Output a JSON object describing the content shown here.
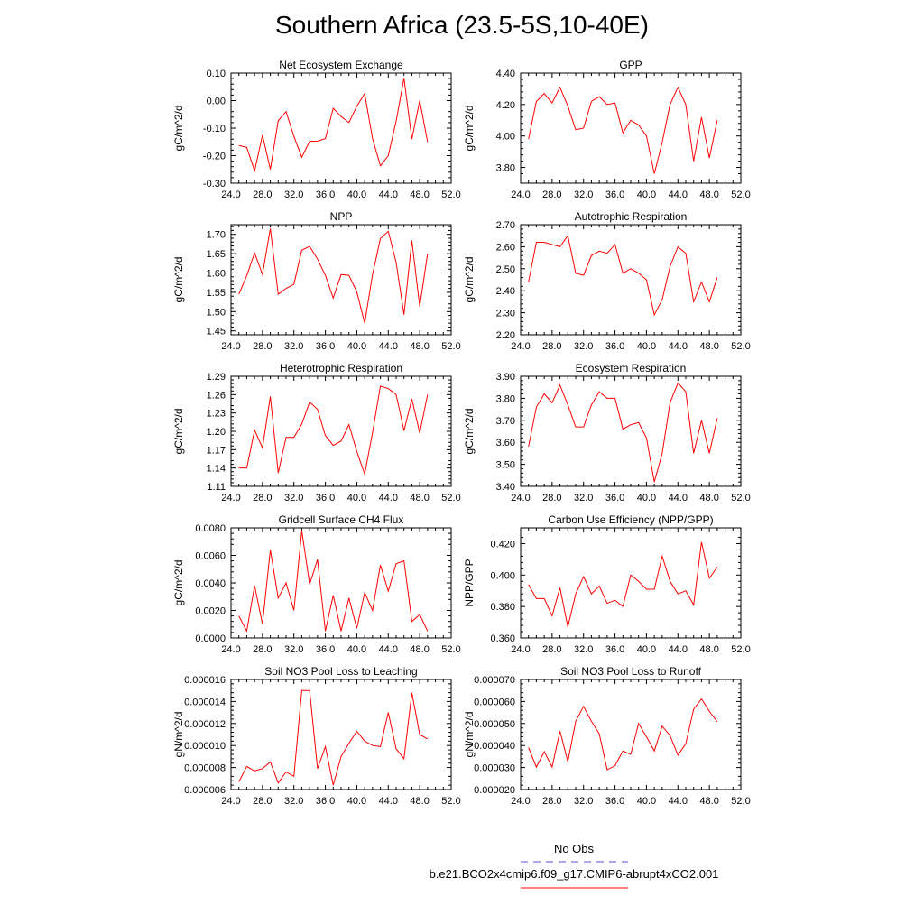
{
  "title": "Southern Africa (23.5-5S,10-40E)",
  "legend": {
    "placement": "bottom-center",
    "entries": [
      {
        "label": "No Obs",
        "color": "#5555cc",
        "style": "dashed"
      },
      {
        "label": "b.e21.BCO2x4cmip6.f09_g17.CMIP6-abrupt4xCO2.001",
        "color": "#ff0000",
        "style": "solid"
      }
    ]
  },
  "chart_data": [
    {
      "type": "line",
      "title": "Net Ecosystem Exchange",
      "ylabel": "gC/m^2/d",
      "xlim": [
        24,
        52
      ],
      "ylim": [
        -0.3,
        0.1
      ],
      "xticks": [
        "24.0",
        "28.0",
        "32.0",
        "36.0",
        "40.0",
        "44.0",
        "48.0",
        "52.0"
      ],
      "yticks": [
        "-0.30",
        "-0.20",
        "-0.10",
        "0.00",
        "0.10"
      ],
      "x": [
        25,
        26,
        27,
        28,
        29,
        30,
        31,
        32,
        33,
        34,
        35,
        36,
        37,
        38,
        39,
        40,
        41,
        42,
        43,
        44,
        45,
        46,
        47,
        48,
        49
      ],
      "series": [
        {
          "values": [
            -0.163,
            -0.17,
            -0.256,
            -0.125,
            -0.25,
            -0.073,
            -0.04,
            -0.13,
            -0.206,
            -0.148,
            -0.147,
            -0.138,
            -0.028,
            -0.058,
            -0.08,
            -0.02,
            0.025,
            -0.138,
            -0.237,
            -0.2,
            -0.075,
            0.082,
            -0.14,
            0.0,
            -0.15
          ],
          "color": "#ff0000"
        }
      ]
    },
    {
      "type": "line",
      "title": "GPP",
      "ylabel": "gC/m^2/d",
      "xlim": [
        24,
        52
      ],
      "ylim": [
        3.7,
        4.4
      ],
      "xticks": [
        "24.0",
        "28.0",
        "32.0",
        "36.0",
        "40.0",
        "44.0",
        "48.0",
        "52.0"
      ],
      "yticks": [
        "3.80",
        "4.00",
        "4.20",
        "4.40"
      ],
      "x": [
        25,
        26,
        27,
        28,
        29,
        30,
        31,
        32,
        33,
        34,
        35,
        36,
        37,
        38,
        39,
        40,
        41,
        42,
        43,
        44,
        45,
        46,
        47,
        48,
        49
      ],
      "series": [
        {
          "values": [
            3.98,
            4.22,
            4.27,
            4.21,
            4.31,
            4.19,
            4.04,
            4.05,
            4.22,
            4.25,
            4.2,
            4.21,
            4.02,
            4.1,
            4.07,
            4.0,
            3.76,
            3.96,
            4.2,
            4.31,
            4.2,
            3.84,
            4.12,
            3.86,
            4.1
          ],
          "color": "#ff0000"
        }
      ]
    },
    {
      "type": "line",
      "title": "NPP",
      "ylabel": "gC/m^2/d",
      "xlim": [
        24,
        52
      ],
      "ylim": [
        1.44,
        1.725
      ],
      "xticks": [
        "24.0",
        "28.0",
        "32.0",
        "36.0",
        "40.0",
        "44.0",
        "48.0",
        "52.0"
      ],
      "yticks": [
        "1.45",
        "1.50",
        "1.55",
        "1.60",
        "1.65",
        "1.70"
      ],
      "x": [
        25,
        26,
        27,
        28,
        29,
        30,
        31,
        32,
        33,
        34,
        35,
        36,
        37,
        38,
        39,
        40,
        41,
        42,
        43,
        44,
        45,
        46,
        47,
        48,
        49
      ],
      "series": [
        {
          "values": [
            1.545,
            1.593,
            1.652,
            1.596,
            1.715,
            1.545,
            1.56,
            1.571,
            1.659,
            1.669,
            1.636,
            1.594,
            1.535,
            1.596,
            1.594,
            1.551,
            1.47,
            1.596,
            1.689,
            1.708,
            1.627,
            1.492,
            1.684,
            1.513,
            1.65
          ],
          "color": "#ff0000"
        }
      ]
    },
    {
      "type": "line",
      "title": "Autotrophic Respiration",
      "ylabel": "gC/m^2/d",
      "xlim": [
        24,
        52
      ],
      "ylim": [
        2.2,
        2.7
      ],
      "xticks": [
        "24.0",
        "28.0",
        "32.0",
        "36.0",
        "40.0",
        "44.0",
        "48.0",
        "52.0"
      ],
      "yticks": [
        "2.20",
        "2.30",
        "2.40",
        "2.50",
        "2.60",
        "2.70"
      ],
      "x": [
        25,
        26,
        27,
        28,
        29,
        30,
        31,
        32,
        33,
        34,
        35,
        36,
        37,
        38,
        39,
        40,
        41,
        42,
        43,
        44,
        45,
        46,
        47,
        48,
        49
      ],
      "series": [
        {
          "values": [
            2.44,
            2.62,
            2.62,
            2.61,
            2.6,
            2.65,
            2.48,
            2.47,
            2.56,
            2.58,
            2.57,
            2.61,
            2.48,
            2.5,
            2.48,
            2.45,
            2.29,
            2.36,
            2.51,
            2.6,
            2.57,
            2.35,
            2.44,
            2.35,
            2.46
          ],
          "color": "#ff0000"
        }
      ]
    },
    {
      "type": "line",
      "title": "Heterotrophic Respiration",
      "ylabel": "gC/m^2/d",
      "xlim": [
        24,
        52
      ],
      "ylim": [
        1.11,
        1.29
      ],
      "xticks": [
        "24.0",
        "28.0",
        "32.0",
        "36.0",
        "40.0",
        "44.0",
        "48.0",
        "52.0"
      ],
      "yticks": [
        "1.11",
        "1.14",
        "1.17",
        "1.20",
        "1.23",
        "1.26",
        "1.29"
      ],
      "x": [
        25,
        26,
        27,
        28,
        29,
        30,
        31,
        32,
        33,
        34,
        35,
        36,
        37,
        38,
        39,
        40,
        41,
        42,
        43,
        44,
        45,
        46,
        47,
        48,
        49
      ],
      "series": [
        {
          "values": [
            1.14,
            1.14,
            1.202,
            1.173,
            1.257,
            1.132,
            1.19,
            1.19,
            1.212,
            1.248,
            1.236,
            1.193,
            1.177,
            1.184,
            1.211,
            1.167,
            1.13,
            1.198,
            1.274,
            1.27,
            1.26,
            1.201,
            1.253,
            1.197,
            1.26
          ],
          "color": "#ff0000"
        }
      ]
    },
    {
      "type": "line",
      "title": "Ecosystem Respiration",
      "ylabel": "gC/m^2/d",
      "xlim": [
        24,
        52
      ],
      "ylim": [
        3.4,
        3.9
      ],
      "xticks": [
        "24.0",
        "28.0",
        "32.0",
        "36.0",
        "40.0",
        "44.0",
        "48.0",
        "52.0"
      ],
      "yticks": [
        "3.40",
        "3.50",
        "3.60",
        "3.70",
        "3.80",
        "3.90"
      ],
      "x": [
        25,
        26,
        27,
        28,
        29,
        30,
        31,
        32,
        33,
        34,
        35,
        36,
        37,
        38,
        39,
        40,
        41,
        42,
        43,
        44,
        45,
        46,
        47,
        48,
        49
      ],
      "series": [
        {
          "values": [
            3.58,
            3.76,
            3.82,
            3.78,
            3.86,
            3.77,
            3.67,
            3.67,
            3.77,
            3.83,
            3.8,
            3.8,
            3.66,
            3.68,
            3.69,
            3.62,
            3.42,
            3.55,
            3.78,
            3.87,
            3.83,
            3.55,
            3.7,
            3.55,
            3.71
          ],
          "color": "#ff0000"
        }
      ]
    },
    {
      "type": "line",
      "title": "Gridcell Surface CH4 Flux",
      "ylabel": "gC/m^2/d",
      "xlim": [
        24,
        52
      ],
      "ylim": [
        0.0,
        0.008
      ],
      "xticks": [
        "24.0",
        "28.0",
        "32.0",
        "36.0",
        "40.0",
        "44.0",
        "48.0",
        "52.0"
      ],
      "yticks": [
        "0.0000",
        "0.0020",
        "0.0040",
        "0.0060",
        "0.0080"
      ],
      "x": [
        25,
        26,
        27,
        28,
        29,
        30,
        31,
        32,
        33,
        34,
        35,
        36,
        37,
        38,
        39,
        40,
        41,
        42,
        43,
        44,
        45,
        46,
        47,
        48,
        49
      ],
      "series": [
        {
          "values": [
            0.0016,
            0.0005,
            0.0038,
            0.001,
            0.0064,
            0.0029,
            0.004,
            0.002,
            0.0078,
            0.0039,
            0.0057,
            0.0005,
            0.0031,
            0.0005,
            0.0029,
            0.0007,
            0.0033,
            0.002,
            0.0053,
            0.0034,
            0.0054,
            0.0056,
            0.0012,
            0.0017,
            0.0005
          ],
          "color": "#ff0000"
        }
      ]
    },
    {
      "type": "line",
      "title": "Carbon Use Efficiency (NPP/GPP)",
      "ylabel": "NPP/GPP",
      "xlim": [
        24,
        52
      ],
      "ylim": [
        0.36,
        0.43
      ],
      "xticks": [
        "24.0",
        "28.0",
        "32.0",
        "36.0",
        "40.0",
        "44.0",
        "48.0",
        "52.0"
      ],
      "yticks": [
        "0.360",
        "0.380",
        "0.400",
        "0.420"
      ],
      "x": [
        25,
        26,
        27,
        28,
        29,
        30,
        31,
        32,
        33,
        34,
        35,
        36,
        37,
        38,
        39,
        40,
        41,
        42,
        43,
        44,
        45,
        46,
        47,
        48,
        49
      ],
      "series": [
        {
          "values": [
            0.394,
            0.385,
            0.385,
            0.374,
            0.392,
            0.367,
            0.388,
            0.399,
            0.388,
            0.393,
            0.382,
            0.384,
            0.38,
            0.4,
            0.396,
            0.391,
            0.391,
            0.412,
            0.396,
            0.388,
            0.39,
            0.381,
            0.421,
            0.398,
            0.405
          ],
          "color": "#ff0000"
        }
      ]
    },
    {
      "type": "line",
      "title": "Soil NO3 Pool Loss to Leaching",
      "ylabel": "gN/m^2/d",
      "xlim": [
        24,
        52
      ],
      "ylim": [
        6e-06,
        1.6e-05
      ],
      "xticks": [
        "24.0",
        "28.0",
        "32.0",
        "36.0",
        "40.0",
        "44.0",
        "48.0",
        "52.0"
      ],
      "yticks": [
        "0.000006",
        "0.000008",
        "0.000010",
        "0.000012",
        "0.000014",
        "0.000016"
      ],
      "x": [
        25,
        26,
        27,
        28,
        29,
        30,
        31,
        32,
        33,
        34,
        35,
        36,
        37,
        38,
        39,
        40,
        41,
        42,
        43,
        44,
        45,
        46,
        47,
        48,
        49
      ],
      "series": [
        {
          "values": [
            6.7e-06,
            8.1e-06,
            7.7e-06,
            7.9e-06,
            8.5e-06,
            6.6e-06,
            7.6e-06,
            7.2e-06,
            1.5e-05,
            1.5e-05,
            7.9e-06,
            9.9e-06,
            6.4e-06,
            9e-06,
            1.02e-05,
            1.13e-05,
            1.04e-05,
            1e-05,
            9.9e-06,
            1.3e-05,
            9.7e-06,
            8.8e-06,
            1.48e-05,
            1.1e-05,
            1.06e-05
          ],
          "color": "#ff0000"
        }
      ]
    },
    {
      "type": "line",
      "title": "Soil NO3 Pool Loss to Runoff",
      "ylabel": "gN/m^2/d",
      "xlim": [
        24,
        52
      ],
      "ylim": [
        2e-05,
        7e-05
      ],
      "xticks": [
        "24.0",
        "28.0",
        "32.0",
        "36.0",
        "40.0",
        "44.0",
        "48.0",
        "52.0"
      ],
      "yticks": [
        "0.000020",
        "0.000030",
        "0.000040",
        "0.000050",
        "0.000060",
        "0.000070"
      ],
      "x": [
        25,
        26,
        27,
        28,
        29,
        30,
        31,
        32,
        33,
        34,
        35,
        36,
        37,
        38,
        39,
        40,
        41,
        42,
        43,
        44,
        45,
        46,
        47,
        48,
        49
      ],
      "series": [
        {
          "values": [
            3.91e-05,
            3.02e-05,
            3.72e-05,
            3.02e-05,
            4.66e-05,
            3.26e-05,
            5.1e-05,
            5.78e-05,
            5.1e-05,
            4.53e-05,
            2.9e-05,
            3.08e-05,
            3.75e-05,
            3.6e-05,
            5e-05,
            4.4e-05,
            3.75e-05,
            4.88e-05,
            4.45e-05,
            3.56e-05,
            4.08e-05,
            5.65e-05,
            6.12e-05,
            5.55e-05,
            5.08e-05
          ],
          "color": "#ff0000"
        }
      ]
    }
  ]
}
